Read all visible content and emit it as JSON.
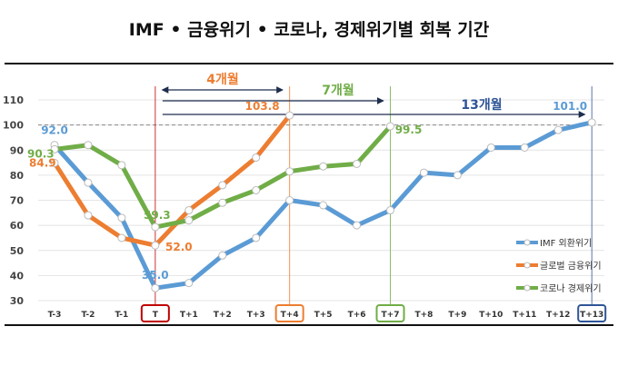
{
  "chart_data": {
    "type": "line",
    "title": "IMF • 금융위기 • 코로나, 경제위기별 회복 기간",
    "categories": [
      "T-3",
      "T-2",
      "T-1",
      "T",
      "T+1",
      "T+2",
      "T+3",
      "T+4",
      "T+5",
      "T+6",
      "T+7",
      "T+8",
      "T+9",
      "T+10",
      "T+11",
      "T+12",
      "T+13"
    ],
    "ylim": [
      30,
      110
    ],
    "yticks": [
      30,
      40,
      50,
      60,
      70,
      80,
      90,
      100,
      110
    ],
    "grid": true,
    "reference_line": 100,
    "legend_position": "bottom-right",
    "series": [
      {
        "name": "IMF 외환위기",
        "color": "#5b9bd5",
        "values": [
          92.0,
          77,
          63,
          35.0,
          37,
          48,
          55,
          70,
          68,
          60,
          66,
          81,
          80,
          91,
          91,
          98,
          101.0
        ]
      },
      {
        "name": "글로벌 금융위기",
        "color": "#ed7d31",
        "values": [
          84.9,
          64,
          55,
          52.0,
          66,
          76,
          87,
          103.8,
          null,
          null,
          null,
          null,
          null,
          null,
          null,
          null,
          null
        ]
      },
      {
        "name": "코로나 경제위기",
        "color": "#70ad47",
        "values": [
          90.3,
          92,
          84,
          59.3,
          62,
          69,
          74,
          81.5,
          83.5,
          84.5,
          99.5,
          null,
          null,
          null,
          null,
          null,
          null
        ]
      }
    ],
    "data_labels": [
      {
        "series": 0,
        "index": 0,
        "text": "92.0"
      },
      {
        "series": 0,
        "index": 3,
        "text": "35.0"
      },
      {
        "series": 0,
        "index": 16,
        "text": "101.0"
      },
      {
        "series": 1,
        "index": 0,
        "text": "84.9"
      },
      {
        "series": 1,
        "index": 3,
        "text": "52.0"
      },
      {
        "series": 1,
        "index": 7,
        "text": "103.8"
      },
      {
        "series": 2,
        "index": 0,
        "text": "90.3"
      },
      {
        "series": 2,
        "index": 3,
        "text": "59.3"
      },
      {
        "series": 2,
        "index": 10,
        "text": "99.5"
      }
    ],
    "annotations": [
      {
        "text": "4개월",
        "from": "T",
        "to": "T+4",
        "color": "#ed7d31"
      },
      {
        "text": "7개월",
        "from": "T",
        "to": "T+7",
        "color": "#70ad47"
      },
      {
        "text": "13개월",
        "from": "T",
        "to": "T+13",
        "color": "#2f5597"
      }
    ],
    "highlighted_ticks": [
      {
        "label": "T",
        "color": "#c00000"
      },
      {
        "label": "T+4",
        "color": "#ed7d31"
      },
      {
        "label": "T+7",
        "color": "#70ad47"
      },
      {
        "label": "T+13",
        "color": "#2f5597"
      }
    ]
  }
}
